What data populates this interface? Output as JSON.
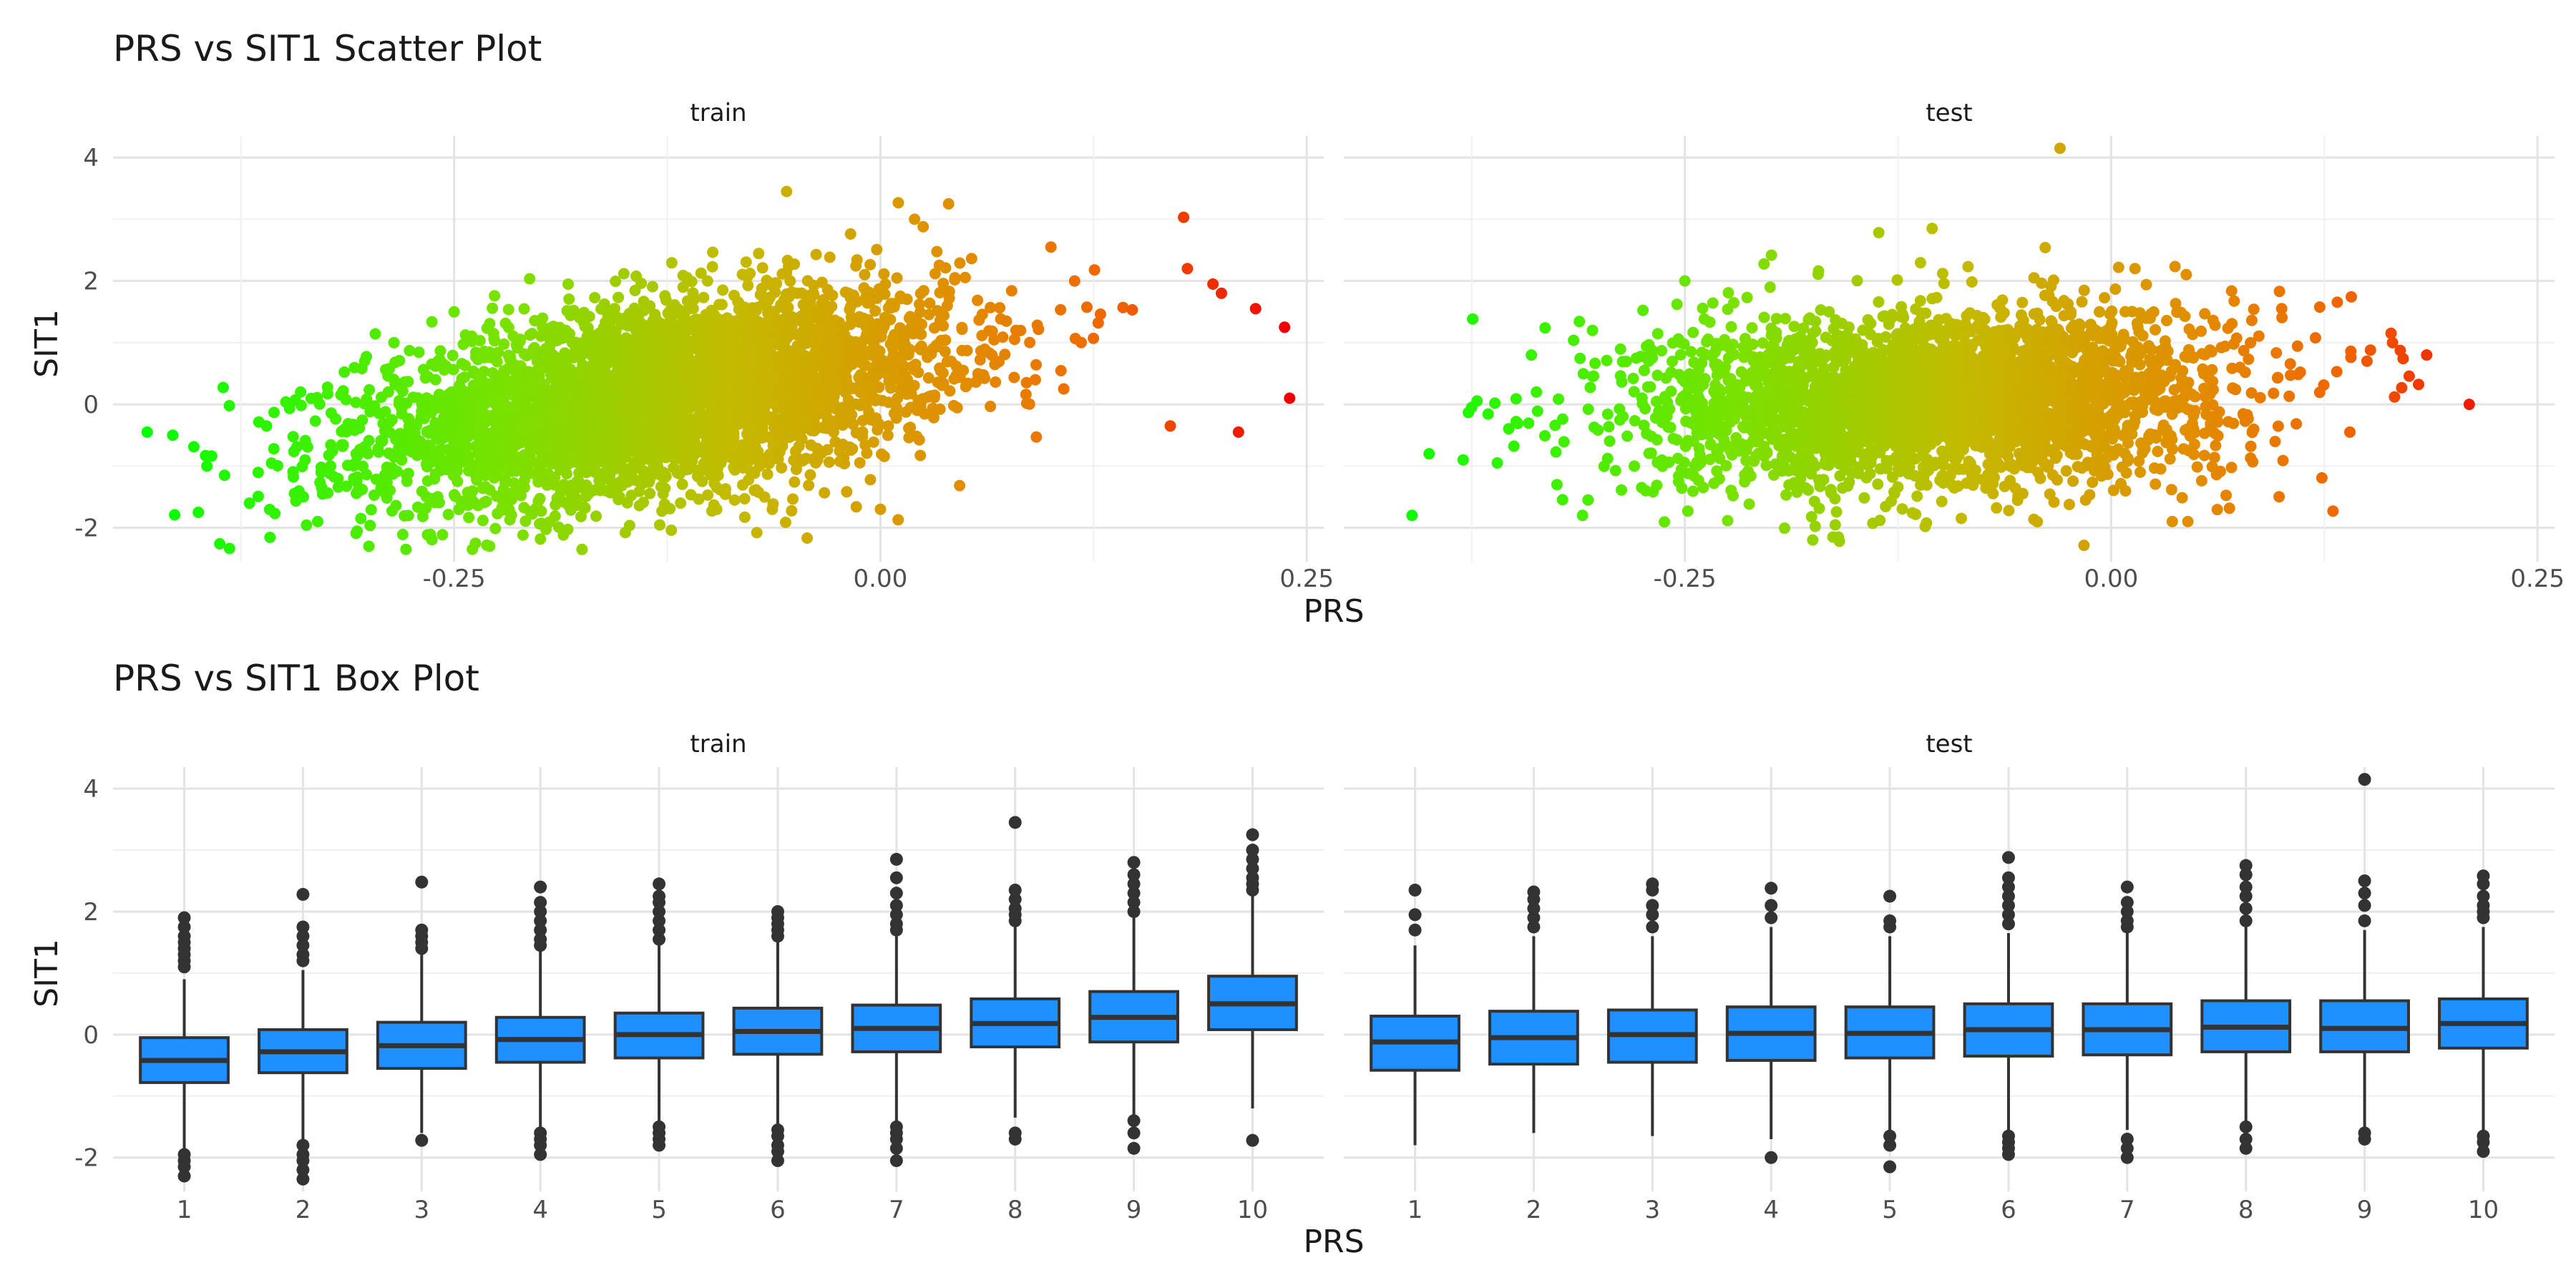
{
  "chart_data": [
    {
      "type": "scatter",
      "title": "PRS vs SIT1 Scatter Plot",
      "xlabel": "PRS",
      "ylabel": "SIT1",
      "facets": [
        "train",
        "test"
      ],
      "x_ticks": [
        -0.25,
        0.0,
        0.25
      ],
      "x_tick_labels": [
        "-0.25",
        "0.00",
        "0.25"
      ],
      "y_ticks": [
        -2,
        0,
        2,
        4
      ],
      "y_tick_labels": [
        "-2",
        "0",
        "2",
        "4"
      ],
      "xlim": [
        -0.45,
        0.26
      ],
      "ylim": [
        -2.55,
        4.35
      ],
      "grid": true,
      "legend": "none",
      "color_scale": {
        "low": "#00ff00",
        "mid": "#d4a000",
        "high": "#ee0000",
        "mapped_to": "PRS"
      },
      "series": [
        {
          "name": "train",
          "summary": {
            "x_mean": -0.13,
            "x_sd": 0.085,
            "y_intercept": 0.65,
            "y_slope": 4.2,
            "y_resid_sd": 0.75,
            "approx_n": 4000
          },
          "points": [
            [
              -0.43,
              -0.45
            ],
            [
              -0.415,
              -0.5
            ],
            [
              -0.4,
              -1.75
            ],
            [
              -0.395,
              -1.0
            ],
            [
              -0.37,
              -1.6
            ],
            [
              -0.36,
              -0.35
            ],
            [
              -0.34,
              0.2
            ],
            [
              -0.33,
              -1.9
            ],
            [
              -0.3,
              -2.3
            ],
            [
              -0.25,
              1.5
            ],
            [
              -0.175,
              -2.35
            ],
            [
              -0.055,
              3.45
            ],
            [
              0.02,
              3.0
            ],
            [
              0.04,
              3.25
            ],
            [
              0.0,
              -1.7
            ],
            [
              0.18,
              2.2
            ],
            [
              0.195,
              1.95
            ],
            [
              0.2,
              1.8
            ],
            [
              0.21,
              -0.45
            ],
            [
              0.22,
              1.55
            ],
            [
              0.237,
              1.25
            ],
            [
              0.24,
              0.1
            ],
            [
              0.17,
              -0.35
            ],
            [
              0.1,
              2.55
            ]
          ]
        },
        {
          "name": "test",
          "summary": {
            "x_mean": -0.1,
            "x_sd": 0.085,
            "y_intercept": 0.2,
            "y_slope": 1.0,
            "y_resid_sd": 0.72,
            "approx_n": 3000
          },
          "points": [
            [
              -0.41,
              -1.8
            ],
            [
              -0.4,
              -0.8
            ],
            [
              -0.38,
              -0.9
            ],
            [
              -0.375,
              -0.05
            ],
            [
              -0.36,
              -0.95
            ],
            [
              -0.34,
              0.8
            ],
            [
              -0.325,
              -1.3
            ],
            [
              -0.31,
              -1.8
            ],
            [
              -0.25,
              2.0
            ],
            [
              -0.2,
              1.9
            ],
            [
              -0.16,
              -2.15
            ],
            [
              -0.105,
              2.85
            ],
            [
              -0.03,
              4.15
            ],
            [
              -0.015,
              -1.55
            ],
            [
              0.045,
              -1.9
            ],
            [
              0.1,
              1.55
            ],
            [
              0.14,
              -0.45
            ],
            [
              0.15,
              0.7
            ],
            [
              0.165,
              1.0
            ],
            [
              0.185,
              0.8
            ],
            [
              0.21,
              0.0
            ]
          ]
        }
      ]
    },
    {
      "type": "box",
      "title": "PRS vs SIT1 Box Plot",
      "xlabel": "PRS",
      "ylabel": "SIT1",
      "facets": [
        "train",
        "test"
      ],
      "categories": [
        "1",
        "2",
        "3",
        "4",
        "5",
        "6",
        "7",
        "8",
        "9",
        "10"
      ],
      "y_ticks": [
        -2,
        0,
        2,
        4
      ],
      "y_tick_labels": [
        "-2",
        "0",
        "2",
        "4"
      ],
      "ylim": [
        -2.55,
        4.35
      ],
      "grid": true,
      "box_fill": "#1e90ff",
      "box_stroke": "#333333",
      "series": [
        {
          "name": "train",
          "boxes": [
            {
              "q1": -0.78,
              "median": -0.42,
              "q3": -0.05,
              "lower": -1.85,
              "upper": 0.9,
              "outliers_low": [
                -1.95,
                -2.05,
                -2.15,
                -2.3
              ],
              "outliers_high": [
                1.1,
                1.2,
                1.3,
                1.4,
                1.5,
                1.6,
                1.75,
                1.9
              ]
            },
            {
              "q1": -0.62,
              "median": -0.28,
              "q3": 0.08,
              "lower": -1.7,
              "upper": 1.05,
              "outliers_low": [
                -1.8,
                -1.95,
                -2.05,
                -2.2,
                -2.35
              ],
              "outliers_high": [
                1.2,
                1.3,
                1.45,
                1.6,
                1.75,
                2.28
              ]
            },
            {
              "q1": -0.55,
              "median": -0.18,
              "q3": 0.2,
              "lower": -1.6,
              "upper": 1.3,
              "outliers_low": [
                -1.72
              ],
              "outliers_high": [
                1.4,
                1.5,
                1.6,
                1.7,
                2.48
              ]
            },
            {
              "q1": -0.45,
              "median": -0.08,
              "q3": 0.28,
              "lower": -1.5,
              "upper": 1.35,
              "outliers_low": [
                -1.6,
                -1.7,
                -1.8,
                -1.95
              ],
              "outliers_high": [
                1.45,
                1.55,
                1.7,
                1.85,
                2.0,
                2.15,
                2.4
              ]
            },
            {
              "q1": -0.38,
              "median": 0.0,
              "q3": 0.35,
              "lower": -1.4,
              "upper": 1.45,
              "outliers_low": [
                -1.5,
                -1.6,
                -1.7,
                -1.8
              ],
              "outliers_high": [
                1.55,
                1.7,
                1.85,
                2.0,
                2.15,
                2.25,
                2.45
              ]
            },
            {
              "q1": -0.32,
              "median": 0.05,
              "q3": 0.43,
              "lower": -1.45,
              "upper": 1.5,
              "outliers_low": [
                -1.55,
                -1.65,
                -1.8,
                -1.9,
                -2.05
              ],
              "outliers_high": [
                1.6,
                1.7,
                1.8,
                1.9,
                2.0
              ]
            },
            {
              "q1": -0.28,
              "median": 0.1,
              "q3": 0.48,
              "lower": -1.4,
              "upper": 1.6,
              "outliers_low": [
                -1.5,
                -1.6,
                -1.7,
                -1.85,
                -2.05
              ],
              "outliers_high": [
                1.7,
                1.8,
                1.95,
                2.1,
                2.3,
                2.55,
                2.85
              ]
            },
            {
              "q1": -0.2,
              "median": 0.18,
              "q3": 0.58,
              "lower": -1.35,
              "upper": 1.75,
              "outliers_low": [
                -1.6,
                -1.7
              ],
              "outliers_high": [
                1.85,
                1.95,
                2.05,
                2.2,
                2.35,
                3.45
              ]
            },
            {
              "q1": -0.12,
              "median": 0.28,
              "q3": 0.7,
              "lower": -1.35,
              "upper": 1.9,
              "outliers_low": [
                -1.4,
                -1.6,
                -1.85
              ],
              "outliers_high": [
                2.0,
                2.15,
                2.3,
                2.45,
                2.6,
                2.8
              ]
            },
            {
              "q1": 0.08,
              "median": 0.5,
              "q3": 0.95,
              "lower": -1.2,
              "upper": 2.25,
              "outliers_low": [
                -1.72
              ],
              "outliers_high": [
                2.35,
                2.45,
                2.55,
                2.7,
                2.85,
                3.0,
                3.25
              ]
            }
          ]
        },
        {
          "name": "test",
          "boxes": [
            {
              "q1": -0.58,
              "median": -0.12,
              "q3": 0.3,
              "lower": -1.8,
              "upper": 1.45,
              "outliers_low": [],
              "outliers_high": [
                1.7,
                1.95,
                2.35
              ]
            },
            {
              "q1": -0.48,
              "median": -0.05,
              "q3": 0.38,
              "lower": -1.6,
              "upper": 1.6,
              "outliers_low": [],
              "outliers_high": [
                1.75,
                1.9,
                2.05,
                2.2,
                2.32
              ]
            },
            {
              "q1": -0.45,
              "median": 0.0,
              "q3": 0.4,
              "lower": -1.65,
              "upper": 1.6,
              "outliers_low": [],
              "outliers_high": [
                1.75,
                1.95,
                2.1,
                2.35,
                2.45
              ]
            },
            {
              "q1": -0.42,
              "median": 0.02,
              "q3": 0.45,
              "lower": -1.7,
              "upper": 1.75,
              "outliers_low": [
                -2.0
              ],
              "outliers_high": [
                1.9,
                2.1,
                2.38
              ]
            },
            {
              "q1": -0.38,
              "median": 0.02,
              "q3": 0.45,
              "lower": -1.55,
              "upper": 1.6,
              "outliers_low": [
                -1.65,
                -1.8,
                -2.15
              ],
              "outliers_high": [
                1.75,
                1.85,
                2.25
              ]
            },
            {
              "q1": -0.35,
              "median": 0.08,
              "q3": 0.5,
              "lower": -1.55,
              "upper": 1.65,
              "outliers_low": [
                -1.65,
                -1.75,
                -1.85,
                -1.95
              ],
              "outliers_high": [
                1.8,
                1.95,
                2.1,
                2.25,
                2.4,
                2.55,
                2.88
              ]
            },
            {
              "q1": -0.33,
              "median": 0.08,
              "q3": 0.5,
              "lower": -1.55,
              "upper": 1.65,
              "outliers_low": [
                -1.7,
                -1.85,
                -2.0
              ],
              "outliers_high": [
                1.75,
                1.85,
                2.0,
                2.15,
                2.4
              ]
            },
            {
              "q1": -0.28,
              "median": 0.12,
              "q3": 0.55,
              "lower": -1.4,
              "upper": 1.75,
              "outliers_low": [
                -1.5,
                -1.7,
                -1.85
              ],
              "outliers_high": [
                1.85,
                2.05,
                2.25,
                2.4,
                2.6,
                2.75
              ]
            },
            {
              "q1": -0.28,
              "median": 0.1,
              "q3": 0.55,
              "lower": -1.5,
              "upper": 1.7,
              "outliers_low": [
                -1.6,
                -1.7
              ],
              "outliers_high": [
                1.85,
                2.1,
                2.3,
                2.5,
                4.15
              ]
            },
            {
              "q1": -0.22,
              "median": 0.18,
              "q3": 0.58,
              "lower": -1.55,
              "upper": 1.75,
              "outliers_low": [
                -1.65,
                -1.75,
                -1.9
              ],
              "outliers_high": [
                1.9,
                2.0,
                2.1,
                2.25,
                2.45,
                2.58
              ]
            }
          ]
        }
      ]
    }
  ]
}
